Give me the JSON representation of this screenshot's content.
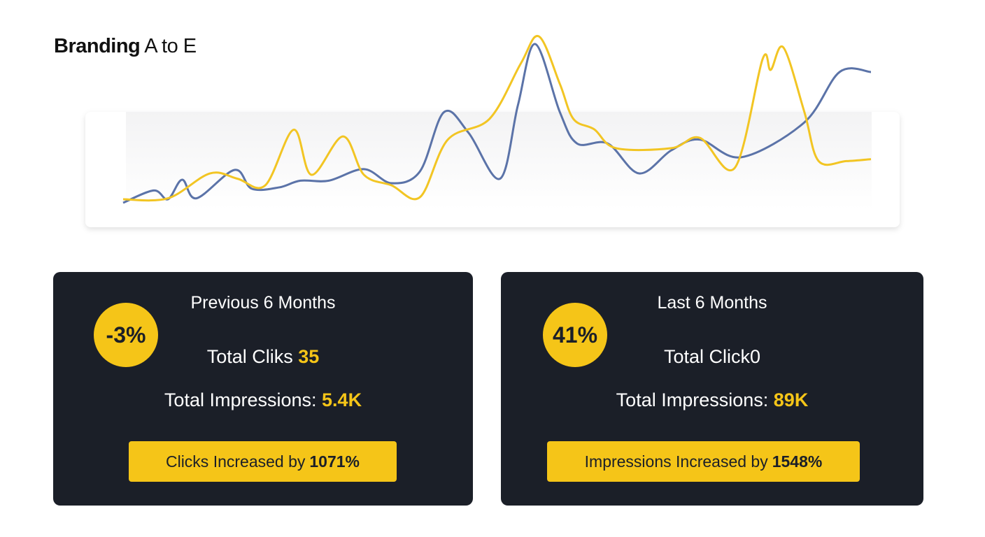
{
  "header": {
    "title_bold": "Branding",
    "title_rest": "A to E"
  },
  "chart_data": {
    "type": "line",
    "xlim": [
      0,
      100
    ],
    "ylim": [
      0,
      100
    ],
    "series": [
      {
        "color": "#5b73a8",
        "x": [
          0,
          4.1,
          6,
          7.9,
          9.8,
          14.9,
          17.2,
          20.9,
          23.7,
          27.5,
          32.2,
          35.9,
          39.7,
          42.9,
          46.2,
          50.4,
          52.8,
          55.1,
          58.4,
          60.7,
          64.8,
          69,
          73.3,
          77.1,
          82.7,
          91.1,
          95.8,
          100
        ],
        "values": [
          10.7,
          17,
          12.5,
          22.5,
          13,
          27.5,
          17.9,
          18.6,
          22,
          22,
          27.9,
          20.7,
          26.8,
          57,
          46.4,
          23,
          60.7,
          91.8,
          57,
          41,
          41,
          25.7,
          37.5,
          43,
          34,
          51.8,
          77.5,
          77.5
        ]
      },
      {
        "color": "#f2c523",
        "x": [
          0,
          6,
          11.6,
          15.3,
          19,
          22.8,
          25.2,
          29.4,
          32.2,
          35.9,
          39.7,
          43.4,
          49,
          53.2,
          55.6,
          58.4,
          60.2,
          63,
          65.9,
          73.3,
          77.1,
          81.8,
          85.5,
          86.6,
          88.3,
          91.1,
          93,
          96.7,
          100
        ],
        "values": [
          12.5,
          13,
          25.7,
          23,
          19.6,
          48,
          25,
          44.6,
          25,
          19.6,
          13.6,
          42.9,
          53.6,
          82,
          95.7,
          71.4,
          53.6,
          48.2,
          38.6,
          38.6,
          43.9,
          28.6,
          84,
          78.6,
          90,
          57,
          32,
          32,
          33
        ]
      }
    ]
  },
  "cards": [
    {
      "title": "Previous 6 Months",
      "badge": "-3%",
      "clicks_label": "Total Cliks",
      "clicks_value": "35",
      "impressions_label": "Total Impressions:",
      "impressions_value": "5.4K",
      "button_label": "Clicks Increased by",
      "button_value": "1071%"
    },
    {
      "title": "Last 6 Months",
      "badge": "41%",
      "clicks_label": "Total Click0",
      "impressions_label": "Total Impressions:",
      "impressions_value": "89K",
      "button_label": "Impressions Increased by",
      "button_value": "1548%"
    }
  ]
}
